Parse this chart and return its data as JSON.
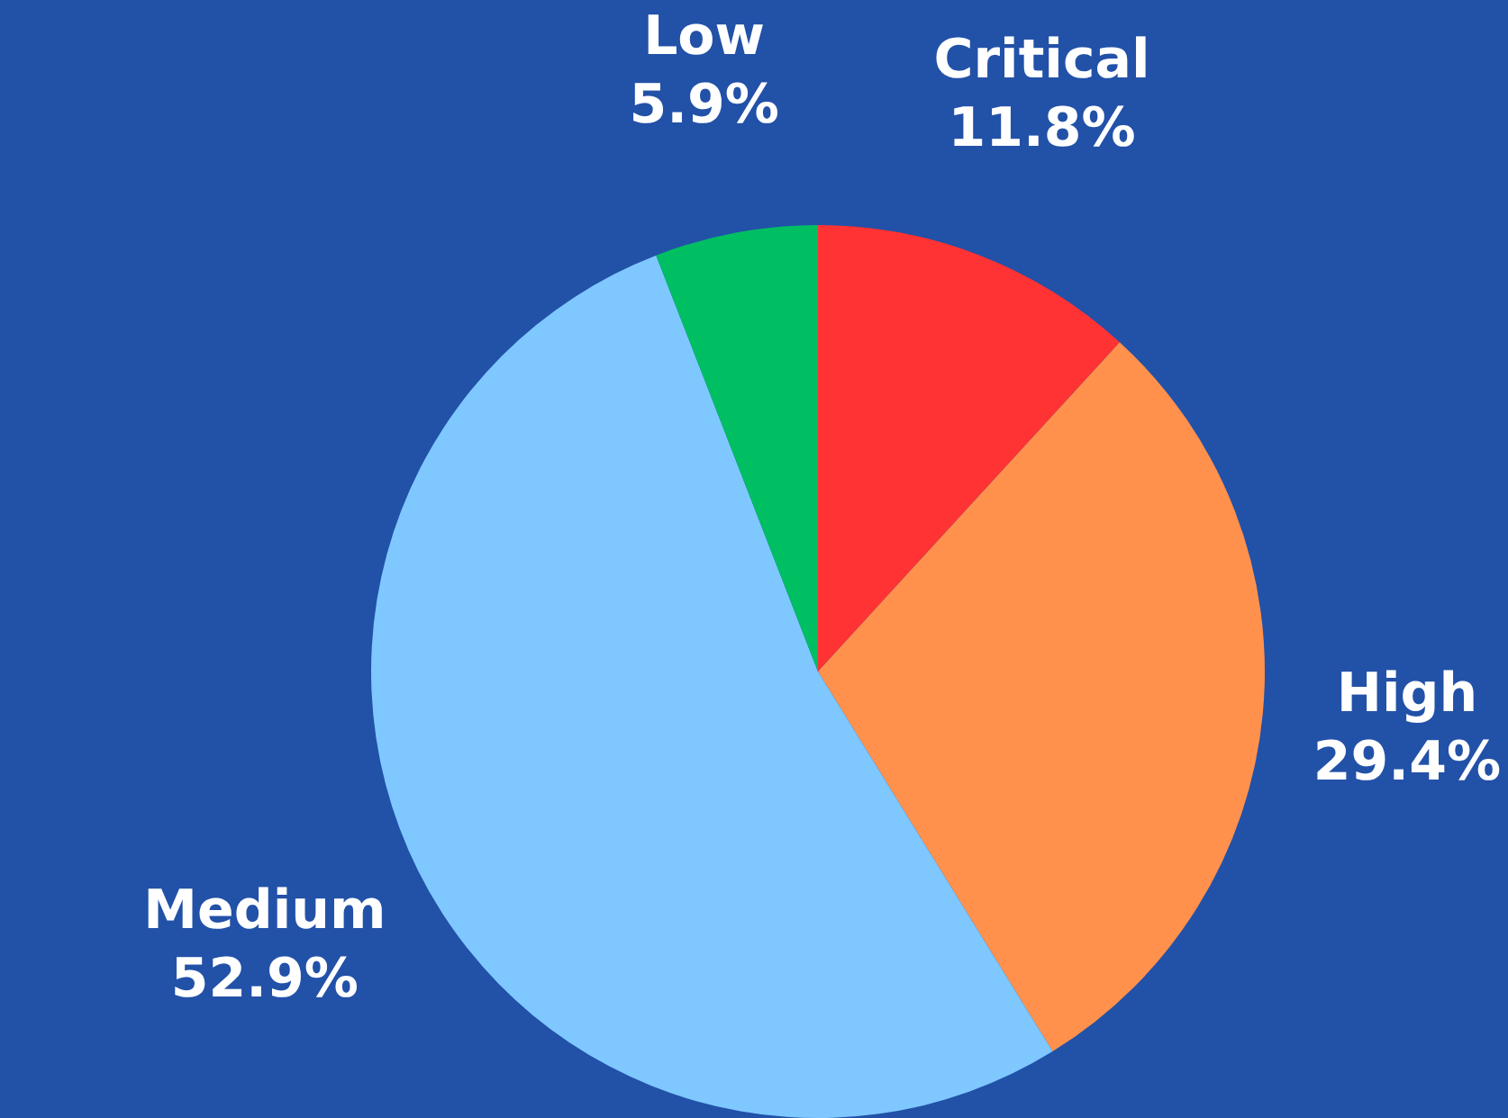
{
  "chart_data": {
    "type": "pie",
    "categories": [
      "Critical",
      "High",
      "Medium",
      "Low"
    ],
    "values": [
      11.8,
      29.4,
      52.9,
      5.9
    ],
    "value_labels": [
      "11.8%",
      "29.4%",
      "52.9%",
      "5.9%"
    ],
    "colors": [
      "#ff3333",
      "#ff914d",
      "#7ec8ff",
      "#00bf63"
    ],
    "legend": false
  }
}
